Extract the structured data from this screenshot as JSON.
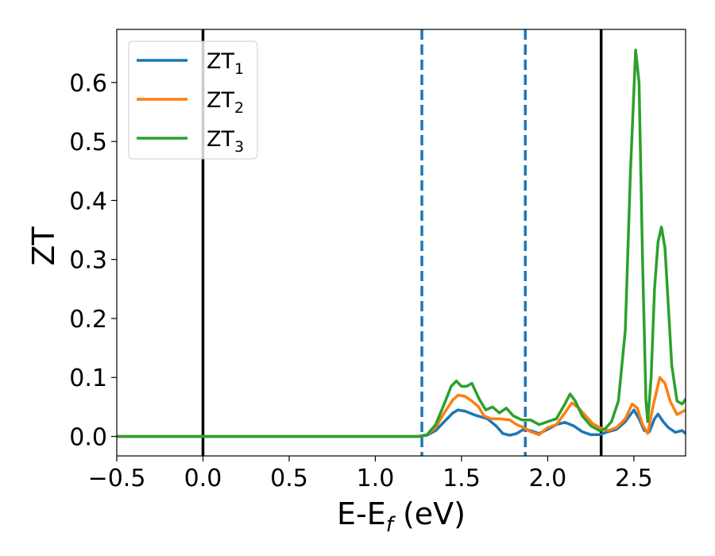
{
  "chart_data": {
    "type": "line",
    "title": "",
    "xlabel": "E-E",
    "xlabel_sub": "f",
    "xlabel_unit": " (eV)",
    "ylabel": "ZT",
    "xlim": [
      -0.5,
      2.8
    ],
    "ylim": [
      -0.033,
      0.69
    ],
    "xticks": [
      -0.5,
      0.0,
      0.5,
      1.0,
      1.5,
      2.0,
      2.5
    ],
    "xtick_labels": [
      "−0.5",
      "0.0",
      "0.5",
      "1.0",
      "1.5",
      "2.0",
      "2.5"
    ],
    "yticks": [
      0.0,
      0.1,
      0.2,
      0.3,
      0.4,
      0.5,
      0.6
    ],
    "ytick_labels": [
      "0.0",
      "0.1",
      "0.2",
      "0.3",
      "0.4",
      "0.5",
      "0.6"
    ],
    "grid": false,
    "legend_position": "top-left",
    "vlines": [
      {
        "x": 0.0,
        "style": "solid",
        "color": "#000000"
      },
      {
        "x": 1.27,
        "style": "dashed",
        "color": "#1f77b4"
      },
      {
        "x": 1.87,
        "style": "dashed",
        "color": "#1f77b4"
      },
      {
        "x": 2.31,
        "style": "solid",
        "color": "#000000"
      }
    ],
    "series": [
      {
        "name": "ZT",
        "sub": "1",
        "color": "#1f77b4",
        "points": [
          [
            -0.5,
            0
          ],
          [
            1.25,
            0
          ],
          [
            1.3,
            0.002
          ],
          [
            1.35,
            0.01
          ],
          [
            1.4,
            0.025
          ],
          [
            1.45,
            0.04
          ],
          [
            1.48,
            0.045
          ],
          [
            1.52,
            0.043
          ],
          [
            1.58,
            0.036
          ],
          [
            1.65,
            0.03
          ],
          [
            1.7,
            0.018
          ],
          [
            1.74,
            0.005
          ],
          [
            1.78,
            0.002
          ],
          [
            1.82,
            0.005
          ],
          [
            1.86,
            0.012
          ],
          [
            1.9,
            0.01
          ],
          [
            1.95,
            0.005
          ],
          [
            2.0,
            0.012
          ],
          [
            2.05,
            0.02
          ],
          [
            2.1,
            0.024
          ],
          [
            2.15,
            0.018
          ],
          [
            2.2,
            0.008
          ],
          [
            2.25,
            0.003
          ],
          [
            2.3,
            0.003
          ],
          [
            2.35,
            0.008
          ],
          [
            2.4,
            0.012
          ],
          [
            2.45,
            0.025
          ],
          [
            2.5,
            0.045
          ],
          [
            2.53,
            0.03
          ],
          [
            2.56,
            0.01
          ],
          [
            2.59,
            0.008
          ],
          [
            2.62,
            0.03
          ],
          [
            2.64,
            0.038
          ],
          [
            2.67,
            0.025
          ],
          [
            2.7,
            0.015
          ],
          [
            2.74,
            0.007
          ],
          [
            2.78,
            0.01
          ],
          [
            2.8,
            0.005
          ]
        ]
      },
      {
        "name": "ZT",
        "sub": "2",
        "color": "#ff7f0e",
        "points": [
          [
            -0.5,
            0
          ],
          [
            1.25,
            0
          ],
          [
            1.3,
            0.003
          ],
          [
            1.35,
            0.015
          ],
          [
            1.4,
            0.04
          ],
          [
            1.45,
            0.062
          ],
          [
            1.48,
            0.07
          ],
          [
            1.52,
            0.068
          ],
          [
            1.56,
            0.06
          ],
          [
            1.6,
            0.05
          ],
          [
            1.63,
            0.035
          ],
          [
            1.67,
            0.03
          ],
          [
            1.72,
            0.03
          ],
          [
            1.78,
            0.028
          ],
          [
            1.82,
            0.02
          ],
          [
            1.86,
            0.015
          ],
          [
            1.9,
            0.008
          ],
          [
            1.95,
            0.003
          ],
          [
            1.97,
            0.008
          ],
          [
            2.0,
            0.015
          ],
          [
            2.05,
            0.02
          ],
          [
            2.1,
            0.04
          ],
          [
            2.14,
            0.057
          ],
          [
            2.18,
            0.048
          ],
          [
            2.22,
            0.035
          ],
          [
            2.26,
            0.022
          ],
          [
            2.3,
            0.015
          ],
          [
            2.35,
            0.01
          ],
          [
            2.4,
            0.015
          ],
          [
            2.45,
            0.03
          ],
          [
            2.49,
            0.055
          ],
          [
            2.52,
            0.048
          ],
          [
            2.55,
            0.02
          ],
          [
            2.58,
            0.005
          ],
          [
            2.61,
            0.05
          ],
          [
            2.65,
            0.1
          ],
          [
            2.68,
            0.09
          ],
          [
            2.71,
            0.06
          ],
          [
            2.75,
            0.037
          ],
          [
            2.8,
            0.045
          ]
        ]
      },
      {
        "name": "ZT",
        "sub": "3",
        "color": "#2ca02c",
        "points": [
          [
            -0.5,
            0
          ],
          [
            1.25,
            0
          ],
          [
            1.3,
            0.003
          ],
          [
            1.35,
            0.02
          ],
          [
            1.4,
            0.055
          ],
          [
            1.44,
            0.085
          ],
          [
            1.47,
            0.094
          ],
          [
            1.5,
            0.085
          ],
          [
            1.53,
            0.085
          ],
          [
            1.56,
            0.09
          ],
          [
            1.6,
            0.065
          ],
          [
            1.64,
            0.045
          ],
          [
            1.68,
            0.05
          ],
          [
            1.72,
            0.04
          ],
          [
            1.76,
            0.048
          ],
          [
            1.8,
            0.035
          ],
          [
            1.85,
            0.028
          ],
          [
            1.9,
            0.028
          ],
          [
            1.95,
            0.02
          ],
          [
            2.0,
            0.025
          ],
          [
            2.05,
            0.03
          ],
          [
            2.1,
            0.055
          ],
          [
            2.13,
            0.072
          ],
          [
            2.16,
            0.06
          ],
          [
            2.2,
            0.035
          ],
          [
            2.25,
            0.018
          ],
          [
            2.3,
            0.01
          ],
          [
            2.33,
            0.012
          ],
          [
            2.37,
            0.025
          ],
          [
            2.41,
            0.06
          ],
          [
            2.45,
            0.18
          ],
          [
            2.48,
            0.45
          ],
          [
            2.51,
            0.655
          ],
          [
            2.53,
            0.6
          ],
          [
            2.55,
            0.3
          ],
          [
            2.57,
            0.06
          ],
          [
            2.58,
            0.025
          ],
          [
            2.6,
            0.1
          ],
          [
            2.62,
            0.25
          ],
          [
            2.64,
            0.33
          ],
          [
            2.66,
            0.355
          ],
          [
            2.68,
            0.32
          ],
          [
            2.7,
            0.22
          ],
          [
            2.72,
            0.12
          ],
          [
            2.75,
            0.06
          ],
          [
            2.78,
            0.055
          ],
          [
            2.8,
            0.063
          ]
        ]
      }
    ]
  }
}
